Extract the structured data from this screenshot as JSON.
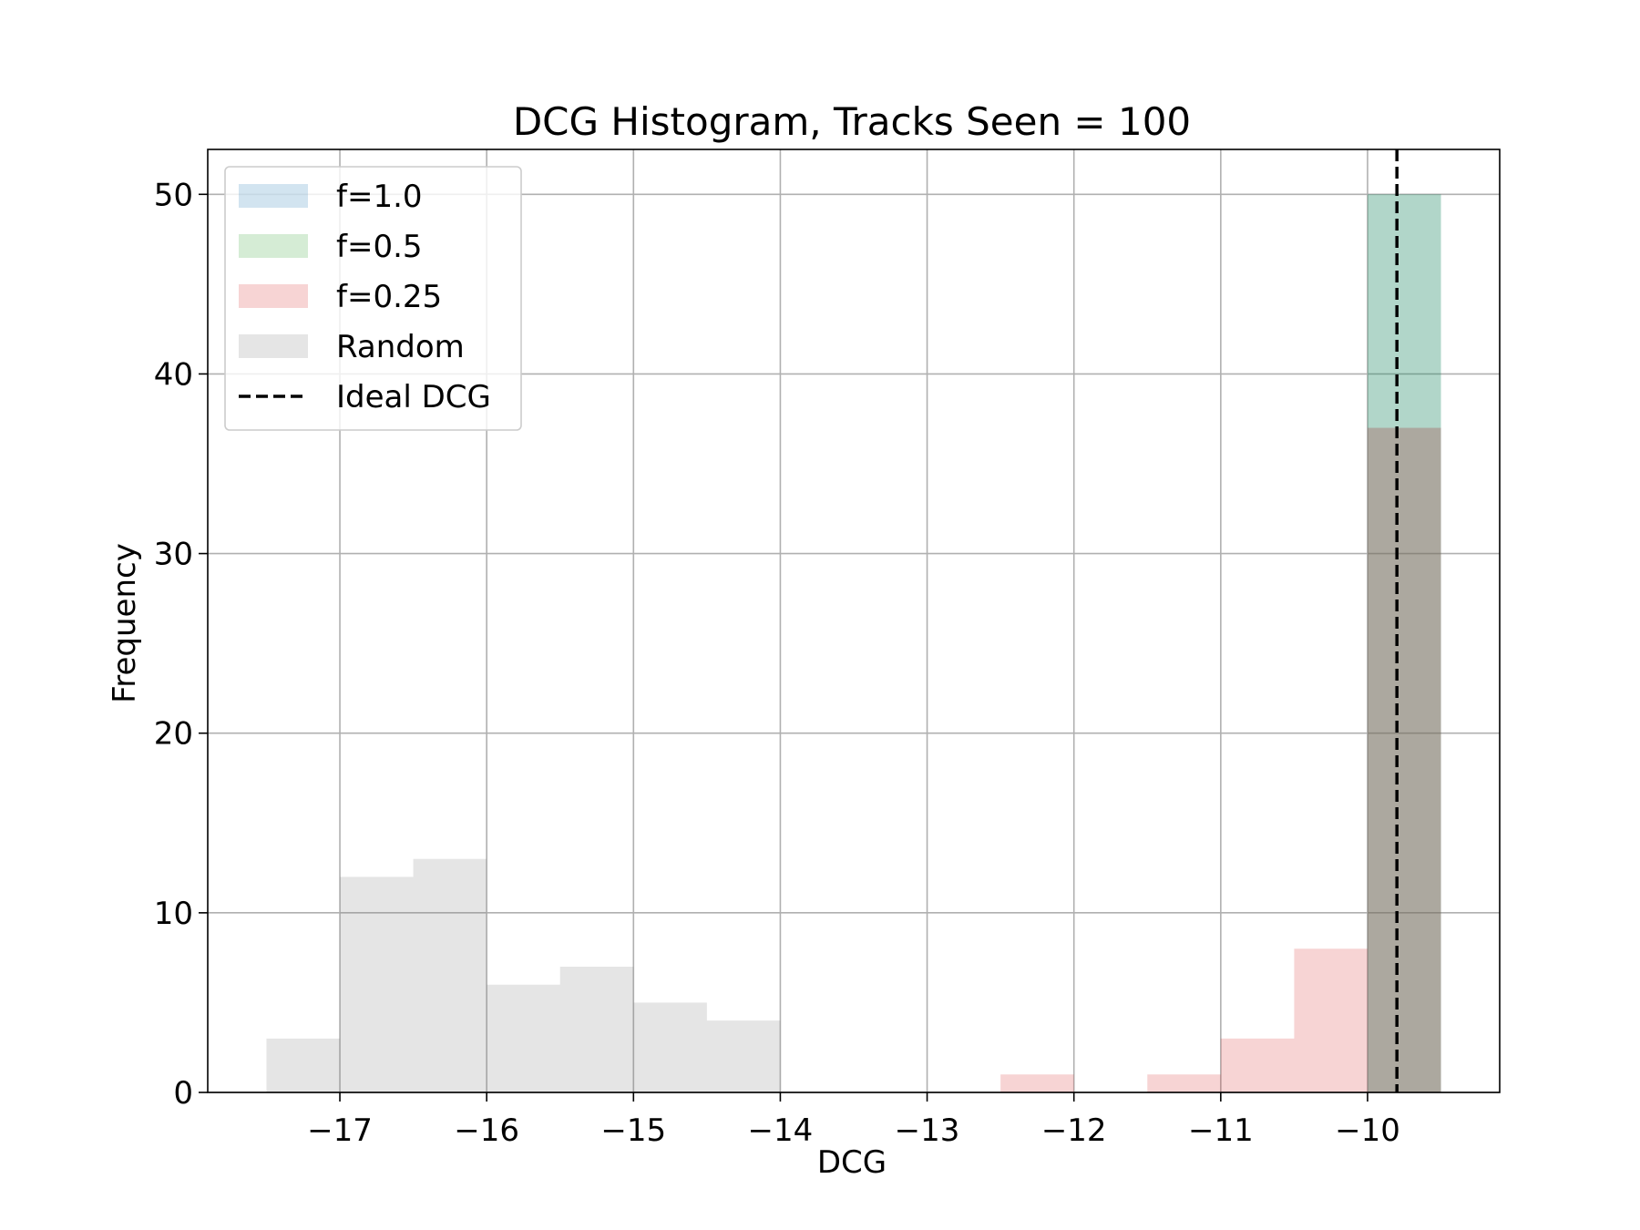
{
  "chart_data": {
    "type": "bar",
    "title": "DCG Histogram, Tracks Seen = 100",
    "xlabel": "DCG",
    "ylabel": "Frequency",
    "xlim": [
      -17.9,
      -9.1
    ],
    "ylim": [
      0,
      52.5
    ],
    "xticks": [
      -17,
      -16,
      -15,
      -14,
      -13,
      -12,
      -11,
      -10
    ],
    "xtick_labels": [
      "−17",
      "−16",
      "−15",
      "−14",
      "−13",
      "−12",
      "−11",
      "−10"
    ],
    "yticks": [
      0,
      10,
      20,
      30,
      40,
      50
    ],
    "grid": true,
    "legend_position": "top-left",
    "ideal_dcg": -9.8,
    "series": [
      {
        "name": "f=1.0",
        "color": "#1f77b4",
        "opacity": 0.2,
        "bins": [
          {
            "x0": -10.0,
            "x1": -9.5,
            "count": 50
          }
        ]
      },
      {
        "name": "f=0.5",
        "color": "#2ca02c",
        "opacity": 0.2,
        "bins": [
          {
            "x0": -10.0,
            "x1": -9.5,
            "count": 50
          }
        ]
      },
      {
        "name": "f=0.25",
        "color": "#d62728",
        "opacity": 0.2,
        "bins": [
          {
            "x0": -12.5,
            "x1": -12.0,
            "count": 1
          },
          {
            "x0": -11.5,
            "x1": -11.0,
            "count": 1
          },
          {
            "x0": -11.0,
            "x1": -10.5,
            "count": 3
          },
          {
            "x0": -10.5,
            "x1": -10.0,
            "count": 8
          },
          {
            "x0": -10.0,
            "x1": -9.5,
            "count": 37
          }
        ]
      },
      {
        "name": "Random",
        "color": "#7f7f7f",
        "opacity": 0.2,
        "bins": [
          {
            "x0": -17.5,
            "x1": -17.0,
            "count": 3
          },
          {
            "x0": -17.0,
            "x1": -16.5,
            "count": 12
          },
          {
            "x0": -16.5,
            "x1": -16.0,
            "count": 13
          },
          {
            "x0": -16.0,
            "x1": -15.5,
            "count": 6
          },
          {
            "x0": -15.5,
            "x1": -15.0,
            "count": 7
          },
          {
            "x0": -15.0,
            "x1": -14.5,
            "count": 5
          },
          {
            "x0": -14.5,
            "x1": -14.0,
            "count": 4
          },
          {
            "x0": -10.0,
            "x1": -9.5,
            "count": 37
          }
        ]
      }
    ],
    "legend": [
      {
        "label": "f=1.0",
        "color": "#1f77b4",
        "kind": "patch"
      },
      {
        "label": "f=0.5",
        "color": "#2ca02c",
        "kind": "patch"
      },
      {
        "label": "f=0.25",
        "color": "#d62728",
        "kind": "patch"
      },
      {
        "label": "Random",
        "color": "#7f7f7f",
        "kind": "patch"
      },
      {
        "label": "Ideal DCG",
        "color": "#000000",
        "kind": "dashed-line"
      }
    ]
  }
}
